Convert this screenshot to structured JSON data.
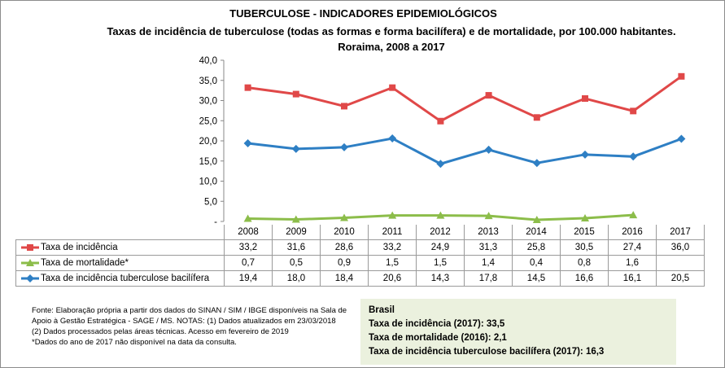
{
  "chart_data": {
    "type": "line",
    "title": "TUBERCULOSE - INDICADORES EPIDEMIOLÓGICOS",
    "subtitle": "Taxas de incidência de tuberculose (todas as formas e forma bacilífera) e de mortalidade,  por 100.000 habitantes. Roraima, 2008 a 2017",
    "categories": [
      "2008",
      "2009",
      "2010",
      "2011",
      "2012",
      "2013",
      "2014",
      "2015",
      "2016",
      "2017"
    ],
    "ylim": [
      0,
      40
    ],
    "yticks": [
      "-",
      "5,0",
      "10,0",
      "15,0",
      "20,0",
      "25,0",
      "30,0",
      "35,0",
      "40,0"
    ],
    "grid": false,
    "legend": "data-table",
    "series": [
      {
        "name": "Taxa de incidência",
        "color": "#e04848",
        "marker": "square",
        "values": [
          33.2,
          31.6,
          28.6,
          33.2,
          24.9,
          31.3,
          25.8,
          30.5,
          27.4,
          36.0
        ],
        "labels": [
          "33,2",
          "31,6",
          "28,6",
          "33,2",
          "24,9",
          "31,3",
          "25,8",
          "30,5",
          "27,4",
          "36,0"
        ]
      },
      {
        "name": "Taxa de mortalidade*",
        "color": "#8cbd4a",
        "marker": "triangle",
        "values": [
          0.7,
          0.5,
          0.9,
          1.5,
          1.5,
          1.4,
          0.4,
          0.8,
          1.6,
          null
        ],
        "labels": [
          "0,7",
          "0,5",
          "0,9",
          "1,5",
          "1,5",
          "1,4",
          "0,4",
          "0,8",
          "1,6",
          ""
        ]
      },
      {
        "name": "Taxa de incidência tuberculose bacilífera",
        "color": "#2e7fc4",
        "marker": "diamond",
        "values": [
          19.4,
          18.0,
          18.4,
          20.6,
          14.3,
          17.8,
          14.5,
          16.6,
          16.1,
          20.5
        ],
        "labels": [
          "19,4",
          "18,0",
          "18,4",
          "20,6",
          "14,3",
          "17,8",
          "14,5",
          "16,6",
          "16,1",
          "20,5"
        ]
      }
    ]
  },
  "source": [
    "Fonte: Elaboração própria a partir dos dados do SINAN / SIM / IBGE  disponíveis na Sala de",
    "Apoio  à Gestão Estratégica - SAGE / MS. NOTAS: (1) Dados atualizados em 23/03/2018",
    "(2) Dados processados pelas áreas técnicas. Acesso em fevereiro de 2019",
    "*Dados do ano de 2017 não disponível na data da consulta."
  ],
  "brasil": {
    "title": "Brasil",
    "lines": [
      "Taxa de incidência  (2017): 33,5",
      "Taxa de mortalidade (2016): 2,1",
      "Taxa de incidência  tuberculose bacilífera  (2017): 16,3"
    ]
  }
}
